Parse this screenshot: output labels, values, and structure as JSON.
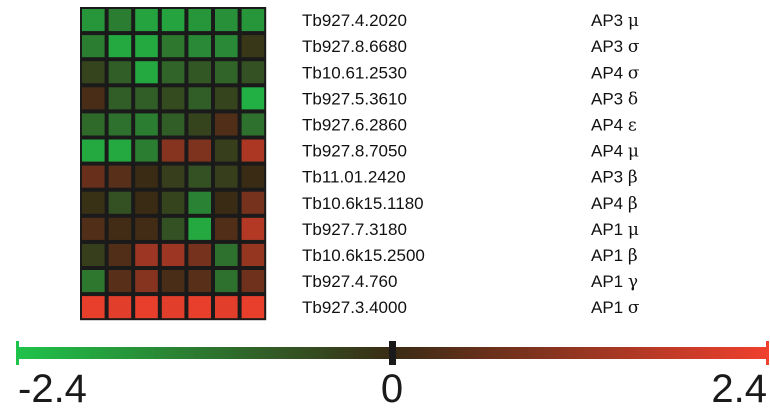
{
  "chart_data": {
    "type": "heatmap",
    "color_scale": {
      "min": -2.4,
      "mid": 0,
      "max": 2.4,
      "min_color": "#1fc24a",
      "mid_color": "#3a2b14",
      "max_color": "#f0402e",
      "ticks": [
        "-2.4",
        "0",
        "2.4"
      ]
    },
    "rows": [
      {
        "gene": "Tb927.4.2020",
        "subunit": "AP3",
        "greek": "μ"
      },
      {
        "gene": "Tb927.8.6680",
        "subunit": "AP3",
        "greek": "σ"
      },
      {
        "gene": "Tb10.61.2530",
        "subunit": "AP4",
        "greek": "σ"
      },
      {
        "gene": "Tb927.5.3610",
        "subunit": "AP3",
        "greek": "δ"
      },
      {
        "gene": "Tb927.6.2860",
        "subunit": "AP4",
        "greek": "ε"
      },
      {
        "gene": "Tb927.8.7050",
        "subunit": "AP4",
        "greek": "μ"
      },
      {
        "gene": "Tb11.01.2420",
        "subunit": "AP3",
        "greek": "β"
      },
      {
        "gene": "Tb10.6k15.1180",
        "subunit": "AP4",
        "greek": "β"
      },
      {
        "gene": "Tb927.7.3180",
        "subunit": "AP1",
        "greek": "μ"
      },
      {
        "gene": "Tb10.6k15.2500",
        "subunit": "AP1",
        "greek": "β"
      },
      {
        "gene": "Tb927.4.760",
        "subunit": "AP1",
        "greek": "γ"
      },
      {
        "gene": "Tb927.3.4000",
        "subunit": "AP1",
        "greek": "σ"
      }
    ],
    "values": [
      [
        -1.7,
        -1.3,
        -1.9,
        -1.9,
        -1.7,
        -1.6,
        -1.7
      ],
      [
        -1.3,
        -2.0,
        -2.0,
        -1.2,
        -1.5,
        -1.5,
        -0.2
      ],
      [
        -0.4,
        -0.8,
        -2.0,
        -0.9,
        -0.7,
        -0.9,
        -0.6
      ],
      [
        0.2,
        -0.8,
        -0.8,
        -0.5,
        -0.8,
        -0.4,
        -2.1
      ],
      [
        -1.0,
        -1.1,
        -1.3,
        -0.8,
        -0.4,
        0.3,
        -1.1
      ],
      [
        -2.0,
        -2.0,
        -1.3,
        1.0,
        0.9,
        -0.3,
        1.5
      ],
      [
        0.6,
        0.4,
        0.0,
        -0.3,
        -0.6,
        -0.3,
        0.0
      ],
      [
        -0.1,
        -0.6,
        0.0,
        -0.4,
        -1.4,
        0.0,
        0.8
      ],
      [
        0.3,
        0.1,
        0.1,
        -0.6,
        -2.0,
        0.3,
        1.6
      ],
      [
        -0.3,
        0.3,
        1.3,
        1.3,
        0.8,
        -1.1,
        1.2
      ],
      [
        -1.2,
        0.4,
        1.0,
        0.2,
        0.4,
        -1.1,
        0.7
      ],
      [
        2.3,
        2.2,
        2.3,
        2.2,
        2.3,
        2.2,
        2.3
      ]
    ]
  }
}
